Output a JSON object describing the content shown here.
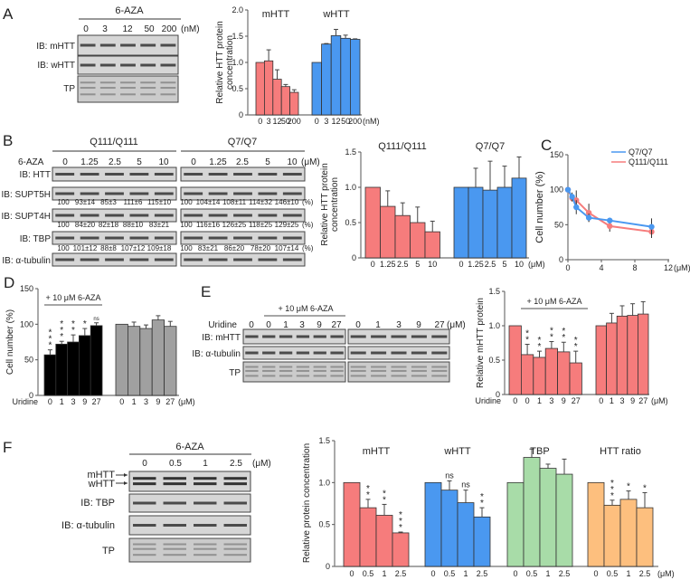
{
  "figure": {
    "panels": [
      "A",
      "B",
      "C",
      "D",
      "E",
      "F"
    ],
    "A": {
      "treatment": "6-AZA",
      "lanes": [
        "0",
        "3",
        "12",
        "50",
        "200"
      ],
      "unit": "(nM)",
      "blots": [
        "IB: mHTT",
        "IB: wHTT",
        "TP"
      ]
    },
    "B": {
      "genotypes": [
        "Q111/Q111",
        "Q7/Q7"
      ],
      "treatment": "6-AZA",
      "lanes": [
        "0",
        "1.25",
        "2.5",
        "5",
        "10",
        "0",
        "1.25",
        "2.5",
        "5",
        "10"
      ],
      "unit": "(μM)",
      "blots": [
        "IB: HTT",
        "IB: SUPT5H",
        "IB: SUPT4H",
        "IB: TBP",
        "IB: α-tubulin"
      ],
      "quant": [
        [
          "100",
          "93±14",
          "85±3",
          "111±6",
          "115±10",
          "100",
          "104±14",
          "108±11",
          "114±32",
          "146±10"
        ],
        [
          "100",
          "84±20",
          "82±18",
          "88±10",
          "83±21",
          "100",
          "116±16",
          "126±25",
          "118±25",
          "129±25"
        ],
        [
          "100",
          "101±12",
          "88±8",
          "107±12",
          "109±18",
          "100",
          "83±21",
          "86±20",
          "78±20",
          "107±14"
        ]
      ],
      "pct": "(%)"
    },
    "E": {
      "treatment": "+ 10 μM 6-AZA",
      "row_label": "Uridine",
      "lanes": [
        "0",
        "0",
        "1",
        "3",
        "9",
        "27",
        "0",
        "1",
        "3",
        "9",
        "27"
      ],
      "unit": "(μM)",
      "blots": [
        "IB: mHTT",
        "IB: α-tubulin",
        "TP"
      ]
    },
    "F": {
      "treatment": "6-AZA",
      "lanes": [
        "0",
        "0.5",
        "1",
        "2.5"
      ],
      "unit": "(μM)",
      "blots": [
        "mHTT",
        "wHTT",
        "IB: TBP",
        "IB: α-tubulin",
        "TP"
      ]
    }
  },
  "chart_data": [
    {
      "type": "bar",
      "panel": "A",
      "ylabel": [
        "Relative HTT protein",
        "concentration"
      ],
      "ylim": [
        0,
        2
      ],
      "yticks": [
        "0",
        "0.5",
        "1.0",
        "1.5",
        "2.0"
      ],
      "ytick_values": [
        0,
        0.5,
        1,
        1.5,
        2
      ],
      "unit": "(nM)",
      "groups": [
        {
          "name": "mHTT",
          "color": "#f67c7c",
          "categories": [
            "0",
            "3",
            "12",
            "50",
            "200"
          ],
          "values": [
            1.0,
            1.03,
            0.68,
            0.54,
            0.43
          ],
          "errors": [
            0,
            0.21,
            0.18,
            0.04,
            0.05
          ]
        },
        {
          "name": "wHTT",
          "color": "#4a98f0",
          "categories": [
            "0",
            "3",
            "12",
            "50",
            "200"
          ],
          "values": [
            1.0,
            1.35,
            1.51,
            1.46,
            1.44
          ],
          "errors": [
            0,
            0.01,
            0.12,
            0.06,
            0.01
          ]
        }
      ]
    },
    {
      "type": "bar",
      "panel": "B",
      "ylabel": [
        "Relative HTT protein",
        "concentration"
      ],
      "ylim": [
        0,
        1.5
      ],
      "yticks": [
        "0",
        "0.5",
        "1.0",
        "1.5"
      ],
      "ytick_values": [
        0,
        0.5,
        1,
        1.5
      ],
      "unit": "(μM)",
      "groups": [
        {
          "name": "Q111/Q111",
          "color": "#f67c7c",
          "categories": [
            "0",
            "1.25",
            "2.5",
            "5",
            "10"
          ],
          "values": [
            1.0,
            0.73,
            0.6,
            0.5,
            0.37
          ],
          "errors": [
            0,
            0.22,
            0.18,
            0.22,
            0.15
          ]
        },
        {
          "name": "Q7/Q7",
          "color": "#4a98f0",
          "categories": [
            "0",
            "1.25",
            "2.5",
            "5",
            "10"
          ],
          "values": [
            1.0,
            1.0,
            0.96,
            1.0,
            1.13
          ],
          "errors": [
            0,
            0.27,
            0.41,
            0.3,
            0.3
          ]
        }
      ]
    },
    {
      "type": "line",
      "panel": "C",
      "ylabel": "Cell number (%)",
      "xlim": [
        0,
        12
      ],
      "ylim": [
        0,
        150
      ],
      "xticks": [
        "0",
        "4",
        "8",
        "12"
      ],
      "xtick_values": [
        0,
        4,
        8,
        12
      ],
      "yticks": [
        "0",
        "50",
        "100",
        "150"
      ],
      "ytick_values": [
        0,
        50,
        100,
        150
      ],
      "unit": "(μM)",
      "legend": "top-right",
      "series": [
        {
          "name": "Q7/Q7",
          "color": "#4a98f0",
          "x": [
            0,
            0.5,
            1,
            2.5,
            5,
            10
          ],
          "y": [
            100,
            90,
            75,
            60,
            56,
            47
          ],
          "errors": [
            2,
            6,
            10,
            6,
            4,
            12
          ]
        },
        {
          "name": "Q111/Q111",
          "color": "#f67c7c",
          "x": [
            0,
            0.5,
            1,
            2.5,
            5,
            10
          ],
          "y": [
            100,
            88,
            85,
            67,
            48,
            40
          ],
          "errors": [
            2,
            5,
            14,
            13,
            8,
            9
          ]
        }
      ]
    },
    {
      "type": "bar",
      "panel": "D",
      "ylabel": [
        "Cell number (%)"
      ],
      "ylim": [
        0,
        150
      ],
      "yticks": [
        "0",
        "50",
        "100",
        "150"
      ],
      "ytick_values": [
        0,
        50,
        100,
        150
      ],
      "unit": "(μM)",
      "xlabel": "Uridine",
      "annotation": "+ 10 μM 6-AZA",
      "groups": [
        {
          "name": "",
          "color": "#000000",
          "categories": [
            "0",
            "1",
            "3",
            "9",
            "27"
          ],
          "values": [
            57,
            72,
            75,
            84,
            98
          ],
          "errors": [
            7,
            4,
            10,
            10,
            4
          ],
          "significance": [
            "***",
            "***",
            "**",
            "*",
            "ns"
          ]
        },
        {
          "name": "",
          "color": "#a0a0a0",
          "categories": [
            "0",
            "1",
            "3",
            "9",
            "27"
          ],
          "values": [
            100,
            97,
            94,
            106,
            97
          ],
          "errors": [
            0,
            6,
            5,
            6,
            7
          ],
          "significance": [
            "",
            "",
            "",
            "",
            ""
          ]
        }
      ]
    },
    {
      "type": "bar",
      "panel": "E",
      "ylabel": [
        "Relative mHTT protein"
      ],
      "ylim": [
        0,
        1.5
      ],
      "yticks": [
        "0",
        "0.5",
        "1.0",
        "1.5"
      ],
      "ytick_values": [
        0,
        0.5,
        1,
        1.5
      ],
      "unit": "(μM)",
      "xlabel": "Uridine",
      "annotation": "+ 10 μM 6-AZA",
      "groups": [
        {
          "name": "",
          "color": "#f67c7c",
          "categories": [
            "0",
            "0",
            "1",
            "3",
            "9",
            "27"
          ],
          "values": [
            1.0,
            0.58,
            0.54,
            0.67,
            0.62,
            0.46
          ],
          "errors": [
            0,
            0.15,
            0.09,
            0.1,
            0.14,
            0.17
          ],
          "significance": [
            "",
            "**",
            "**",
            "**",
            "**",
            "**"
          ]
        },
        {
          "name": "",
          "color": "#f67c7c",
          "categories": [
            "0",
            "1",
            "3",
            "9",
            "27"
          ],
          "values": [
            1.0,
            1.04,
            1.14,
            1.15,
            1.17
          ],
          "errors": [
            0,
            0.14,
            0.15,
            0.17,
            0.18
          ],
          "significance": [
            "",
            "",
            "",
            "",
            ""
          ]
        }
      ]
    },
    {
      "type": "bar",
      "panel": "F",
      "ylabel": [
        "Relative protein concentration"
      ],
      "ylim": [
        0,
        1.5
      ],
      "yticks": [
        "0",
        "0.5",
        "1.0",
        "1.5"
      ],
      "ytick_values": [
        0,
        0.5,
        1,
        1.5
      ],
      "unit": "(μM)",
      "groups": [
        {
          "name": "mHTT",
          "color": "#f67c7c",
          "categories": [
            "0",
            "0.5",
            "1",
            "2.5"
          ],
          "values": [
            1.0,
            0.7,
            0.61,
            0.4
          ],
          "errors": [
            0,
            0.1,
            0.13,
            0.01
          ],
          "significance": [
            "",
            "**",
            "**",
            "***"
          ]
        },
        {
          "name": "wHTT",
          "color": "#4a98f0",
          "categories": [
            "0",
            "0.5",
            "1",
            "2.5"
          ],
          "values": [
            1.0,
            0.91,
            0.76,
            0.59
          ],
          "errors": [
            0,
            0.11,
            0.15,
            0.11
          ],
          "significance": [
            "",
            "ns",
            "ns",
            "**"
          ]
        },
        {
          "name": "TBP",
          "color": "#a8dca8",
          "categories": [
            "0",
            "0.5",
            "1",
            "2.5"
          ],
          "values": [
            1.0,
            1.3,
            1.17,
            1.1
          ],
          "errors": [
            0,
            0.1,
            0.05,
            0.18
          ],
          "significance": [
            "",
            "",
            "",
            ""
          ]
        },
        {
          "name": "HTT ratio",
          "color": "#fdbf7e",
          "categories": [
            "0",
            "0.5",
            "1",
            "2.5"
          ],
          "values": [
            1.0,
            0.73,
            0.8,
            0.7
          ],
          "errors": [
            0,
            0.06,
            0.1,
            0.18
          ],
          "significance": [
            "",
            "***",
            "*",
            "*"
          ]
        }
      ]
    }
  ]
}
